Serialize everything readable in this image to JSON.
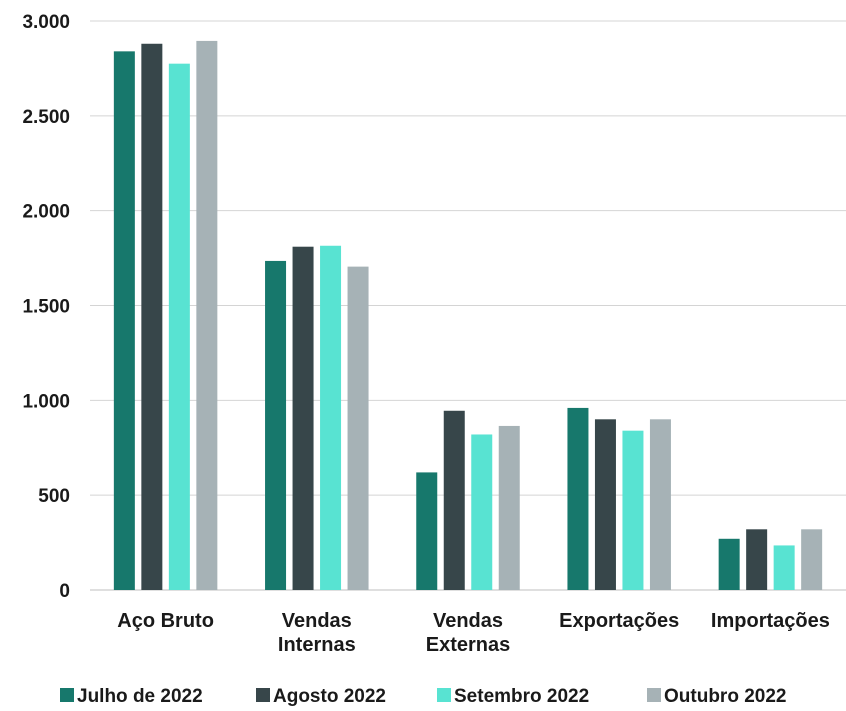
{
  "chart_data": {
    "type": "bar",
    "categories": [
      [
        "Aço Bruto"
      ],
      [
        "Vendas",
        "Internas"
      ],
      [
        "Vendas",
        "Externas"
      ],
      [
        "Exportações"
      ],
      [
        "Importações"
      ]
    ],
    "series": [
      {
        "name": "Julho de 2022",
        "color": "#17786c",
        "values": [
          2840,
          1735,
          620,
          960,
          270
        ]
      },
      {
        "name": "Agosto 2022",
        "color": "#37464a",
        "values": [
          2880,
          1810,
          945,
          900,
          320
        ]
      },
      {
        "name": "Setembro 2022",
        "color": "#58e3d2",
        "values": [
          2775,
          1815,
          820,
          840,
          235
        ]
      },
      {
        "name": "Outubro 2022",
        "color": "#a6b2b6",
        "values": [
          2895,
          1705,
          865,
          900,
          320
        ]
      }
    ],
    "ylim": [
      0,
      3000
    ],
    "yticks": [
      0,
      500,
      1000,
      1500,
      2000,
      2500,
      3000
    ],
    "ytick_labels": [
      "0",
      "500",
      "1.000",
      "1.500",
      "2.000",
      "2.500",
      "3.000"
    ],
    "grid": true,
    "legend_position": "bottom",
    "title": "",
    "xlabel": "",
    "ylabel": ""
  }
}
